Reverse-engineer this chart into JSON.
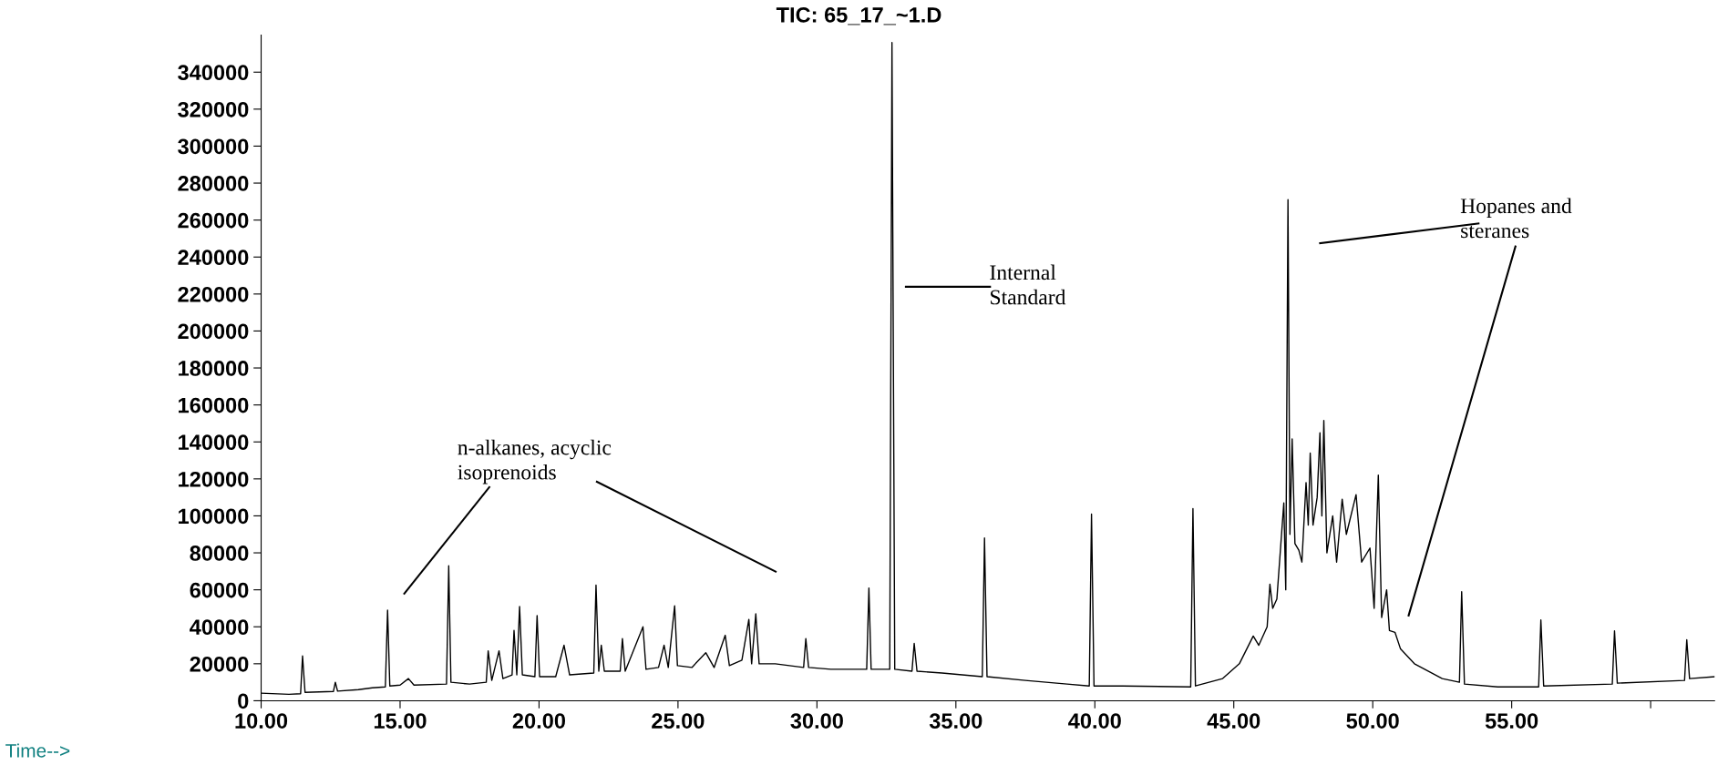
{
  "chart_data": {
    "type": "line",
    "title": "TIC: 65_17_~1.D",
    "x": [
      10.0,
      11.0,
      11.42,
      11.49,
      11.58,
      12.6,
      12.67,
      12.75,
      13.5,
      14.0,
      14.47,
      14.55,
      14.63,
      15.0,
      15.3,
      15.5,
      16.67,
      16.75,
      16.83,
      17.5,
      18.1,
      18.17,
      18.3,
      18.56,
      18.7,
      19.03,
      19.1,
      19.2,
      19.3,
      19.4,
      19.85,
      19.93,
      20.02,
      20.6,
      20.9,
      21.1,
      21.97,
      22.05,
      22.15,
      22.24,
      22.35,
      22.92,
      23.0,
      23.1,
      23.74,
      23.85,
      24.3,
      24.5,
      24.65,
      24.8,
      24.88,
      24.98,
      25.5,
      26.0,
      26.3,
      26.7,
      26.85,
      27.3,
      27.55,
      27.65,
      27.8,
      27.92,
      28.5,
      29.52,
      29.6,
      29.7,
      30.5,
      31.79,
      31.87,
      31.95,
      32.62,
      32.7,
      32.8,
      33.42,
      33.5,
      33.6,
      34.5,
      35.95,
      36.03,
      36.12,
      37.5,
      39.0,
      39.8,
      39.88,
      39.97,
      41.0,
      43.45,
      43.53,
      43.62,
      44.6,
      45.2,
      45.7,
      45.9,
      46.2,
      46.3,
      46.4,
      46.55,
      46.8,
      46.87,
      46.95,
      47.02,
      47.1,
      47.2,
      47.34,
      47.45,
      47.6,
      47.68,
      47.75,
      47.85,
      48.0,
      48.1,
      48.17,
      48.24,
      48.35,
      48.56,
      48.7,
      48.9,
      49.05,
      49.4,
      49.6,
      49.9,
      50.05,
      50.2,
      50.32,
      50.5,
      50.6,
      50.8,
      51.0,
      51.5,
      52.5,
      53.12,
      53.2,
      53.3,
      54.5,
      55.97,
      56.05,
      56.15,
      58.62,
      58.7,
      58.8,
      61.22,
      61.3,
      61.4,
      62.3
    ],
    "series": [
      {
        "color": "#000000",
        "values": [
          4100,
          3500,
          3800,
          24200,
          4500,
          5000,
          10000,
          5200,
          6000,
          7000,
          7500,
          49000,
          8000,
          8500,
          12000,
          8500,
          9000,
          73000,
          10000,
          9000,
          10000,
          27000,
          11000,
          27000,
          12000,
          14000,
          38000,
          14000,
          51000,
          14000,
          13000,
          46000,
          13000,
          13000,
          30000,
          14000,
          15000,
          62500,
          16000,
          30000,
          16000,
          16000,
          33600,
          16000,
          40000,
          17000,
          18000,
          30000,
          18000,
          40000,
          51300,
          19000,
          18000,
          26000,
          18000,
          35400,
          19000,
          22000,
          44000,
          20000,
          47000,
          20000,
          20000,
          18000,
          33600,
          18000,
          17000,
          17000,
          61000,
          17000,
          17000,
          356000,
          17000,
          16000,
          31000,
          16000,
          15000,
          13000,
          88000,
          13000,
          11000,
          9000,
          8000,
          101000,
          8000,
          8000,
          7500,
          104000,
          8000,
          12000,
          20000,
          35000,
          30000,
          40000,
          63000,
          50000,
          55000,
          107000,
          60000,
          271000,
          90000,
          141600,
          85000,
          81400,
          75000,
          118000,
          95000,
          134000,
          95000,
          110000,
          145000,
          100000,
          151600,
          80000,
          100000,
          75000,
          109000,
          90000,
          111500,
          75000,
          82600,
          50000,
          122000,
          45000,
          60000,
          38000,
          37000,
          28000,
          20000,
          12000,
          10000,
          59000,
          9000,
          7500,
          7500,
          43700,
          8000,
          9000,
          37800,
          9500,
          11000,
          33000,
          12000,
          13000
        ]
      }
    ],
    "xlim": [
      10,
      62.3
    ],
    "ylim": [
      0,
      360000
    ],
    "xticks": [
      {
        "value": 10,
        "label": "10.00"
      },
      {
        "value": 15,
        "label": "15.00"
      },
      {
        "value": 20,
        "label": "20.00"
      },
      {
        "value": 25,
        "label": "25.00"
      },
      {
        "value": 30,
        "label": "30.00"
      },
      {
        "value": 35,
        "label": "35.00"
      },
      {
        "value": 40,
        "label": "40.00"
      },
      {
        "value": 45,
        "label": "45.00"
      },
      {
        "value": 50,
        "label": "50.00"
      },
      {
        "value": 55,
        "label": "55.00"
      },
      {
        "value": 60,
        "label": null
      }
    ],
    "yticks": [
      0,
      20000,
      40000,
      60000,
      80000,
      100000,
      120000,
      140000,
      160000,
      180000,
      200000,
      220000,
      240000,
      260000,
      280000,
      300000,
      320000,
      340000
    ],
    "annotations": [
      "n-alkanes, acyclic\nisoprenoids",
      "Internal\nStandard",
      "Hopanes and\nsteranes",
      "Time-->"
    ],
    "grid": false,
    "legend": false,
    "marker": "none",
    "line_style": "solid"
  }
}
